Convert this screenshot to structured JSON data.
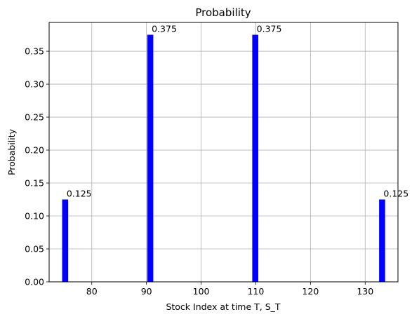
{
  "chart_data": {
    "type": "bar",
    "title": "Probability",
    "xlabel": "Stock Index at time T, S_T",
    "ylabel": "Probability",
    "x": [
      75.13,
      90.7,
      109.9,
      133.1
    ],
    "values": [
      0.125,
      0.375,
      0.375,
      0.125
    ],
    "data_labels": [
      "0.125",
      "0.375",
      "0.375",
      "0.125"
    ],
    "xlim": [
      72.2,
      136.0
    ],
    "ylim": [
      0,
      0.3937
    ],
    "xticks": [
      80,
      90,
      100,
      110,
      120,
      130
    ],
    "yticks": [
      0.0,
      0.05,
      0.1,
      0.15,
      0.2,
      0.25,
      0.3,
      0.35
    ],
    "ytick_labels": [
      "0.00",
      "0.05",
      "0.10",
      "0.15",
      "0.20",
      "0.25",
      "0.30",
      "0.35"
    ],
    "bar_width": 1.1,
    "bar_color": "#0000ff",
    "grid": true
  }
}
